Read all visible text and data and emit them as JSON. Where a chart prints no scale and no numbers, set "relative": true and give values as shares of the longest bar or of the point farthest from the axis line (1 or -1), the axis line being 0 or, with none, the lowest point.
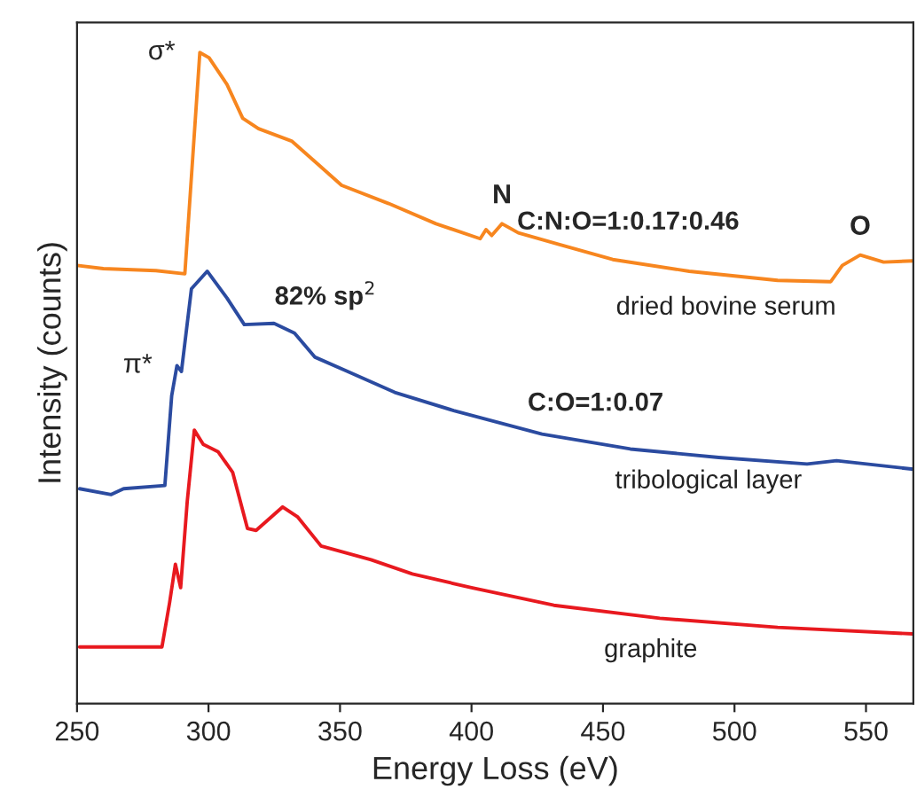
{
  "chart_data": {
    "type": "line",
    "relative": true,
    "xlabel": "Energy Loss (eV)",
    "ylabel": "Intensity (counts)",
    "xlim": [
      250,
      568
    ],
    "xticks": [
      250,
      300,
      350,
      400,
      450,
      500,
      550
    ],
    "grid": false,
    "legend": false,
    "series": [
      {
        "name": "dried bovine serum",
        "color": "#f7861f",
        "x": [
          250,
          260,
          280,
          291,
          296.7,
          300.2,
          307,
          313,
          319,
          331.6,
          341.7,
          350.6,
          368.5,
          386.5,
          403.3,
          405.5,
          407.7,
          411.6,
          417.8,
          433.5,
          453.7,
          482.8,
          516.4,
          536.6,
          541,
          547.8,
          556.7,
          568
        ],
        "values": [
          0.673,
          0.668,
          0.665,
          0.66,
          1.0,
          0.992,
          0.951,
          0.899,
          0.883,
          0.864,
          0.828,
          0.796,
          0.768,
          0.737,
          0.714,
          0.728,
          0.719,
          0.737,
          0.723,
          0.705,
          0.682,
          0.664,
          0.65,
          0.648,
          0.673,
          0.689,
          0.678,
          0.68
        ]
      },
      {
        "name": "tribological layer",
        "color": "#2b4ba0",
        "x": [
          251,
          263,
          267.7,
          283.4,
          286,
          288,
          289.7,
          293.5,
          299.5,
          307,
          313.6,
          324.9,
          332.7,
          340.5,
          352.9,
          370.8,
          393.2,
          426.8,
          460.4,
          494,
          527.6,
          538.8,
          568
        ],
        "values": [
          0.33,
          0.321,
          0.33,
          0.335,
          0.473,
          0.519,
          0.51,
          0.637,
          0.664,
          0.623,
          0.582,
          0.584,
          0.569,
          0.532,
          0.51,
          0.478,
          0.45,
          0.414,
          0.391,
          0.378,
          0.368,
          0.373,
          0.36
        ]
      },
      {
        "name": "graphite",
        "color": "#e8191f",
        "x": [
          251,
          282.3,
          285.2,
          287.4,
          289.4,
          291.9,
          294.6,
          298,
          303.6,
          309.2,
          314.8,
          318.1,
          328.2,
          333.8,
          342.8,
          361.8,
          377.5,
          400,
          431.3,
          471.6,
          516.4,
          568
        ],
        "values": [
          0.087,
          0.087,
          0.155,
          0.214,
          0.178,
          0.31,
          0.42,
          0.398,
          0.387,
          0.355,
          0.269,
          0.266,
          0.302,
          0.287,
          0.242,
          0.221,
          0.199,
          0.178,
          0.151,
          0.131,
          0.117,
          0.107
        ]
      }
    ],
    "annotations": [
      {
        "text": "σ*",
        "x": 296.7,
        "y": 1.0
      },
      {
        "text": "π*",
        "x": 288,
        "y": 0.519
      },
      {
        "text": "N",
        "x": 411.6,
        "y": 0.737
      },
      {
        "text": "O",
        "x": 547.8,
        "y": 0.689
      },
      "82% sp$^{2}$",
      "C:N:O=1:0.17:0.46",
      "C:O=1:0.07"
    ]
  }
}
